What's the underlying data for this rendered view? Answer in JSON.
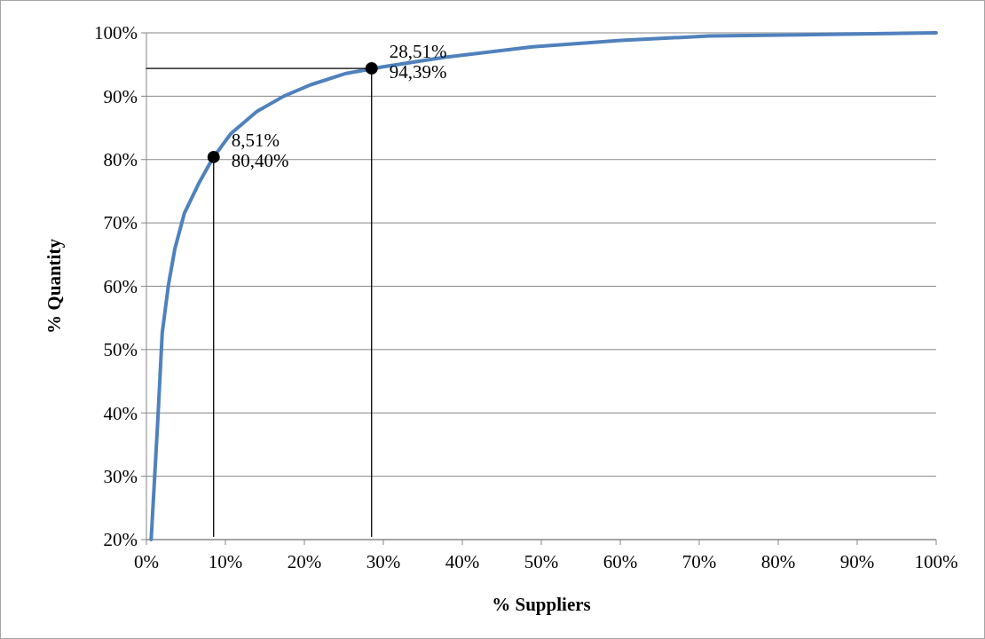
{
  "chart_data": {
    "type": "line",
    "xlabel": "% Suppliers",
    "ylabel": "% Quantity",
    "xlim": [
      0,
      100
    ],
    "ylim": [
      20,
      100
    ],
    "xticks": [
      {
        "value": 0,
        "label": "0%"
      },
      {
        "value": 10,
        "label": "10%"
      },
      {
        "value": 20,
        "label": "20%"
      },
      {
        "value": 30,
        "label": "30%"
      },
      {
        "value": 40,
        "label": "40%"
      },
      {
        "value": 50,
        "label": "50%"
      },
      {
        "value": 60,
        "label": "60%"
      },
      {
        "value": 70,
        "label": "70%"
      },
      {
        "value": 80,
        "label": "80%"
      },
      {
        "value": 90,
        "label": "90%"
      },
      {
        "value": 100,
        "label": "100%"
      }
    ],
    "yticks": [
      {
        "value": 20,
        "label": "20%"
      },
      {
        "value": 30,
        "label": "30%"
      },
      {
        "value": 40,
        "label": "40%"
      },
      {
        "value": 50,
        "label": "50%"
      },
      {
        "value": 60,
        "label": "60%"
      },
      {
        "value": 70,
        "label": "70%"
      },
      {
        "value": 80,
        "label": "80%"
      },
      {
        "value": 90,
        "label": "90%"
      },
      {
        "value": 100,
        "label": "100%"
      }
    ],
    "grid": "y",
    "marker": "none",
    "line_style": "solid",
    "series": [
      {
        "color": "#4f81bd",
        "x": [
          0.6,
          1.4,
          2.0,
          2.8,
          3.6,
          4.8,
          6.7,
          8.4,
          10.7,
          14,
          17.4,
          20.8,
          25.3,
          29.8,
          37.6,
          48.9,
          60.1,
          71.3,
          82.6,
          100
        ],
        "values": [
          20,
          37.9,
          52.6,
          60.3,
          65.9,
          71.5,
          76.4,
          80.2,
          84.1,
          87.6,
          90,
          91.8,
          93.6,
          94.6,
          96.1,
          97.8,
          98.8,
          99.5,
          99.7,
          100
        ]
      },
      {
        "color": "#000000",
        "x": [
          8.51,
          8.51
        ],
        "values": [
          20.5,
          80.4
        ]
      },
      {
        "color": "#000000",
        "x": [
          28.51,
          28.51
        ],
        "values": [
          20.5,
          94.39
        ]
      },
      {
        "color": "#000000",
        "x": [
          0,
          28.51
        ],
        "values": [
          94.39,
          94.39
        ]
      },
      {
        "type": "scatter",
        "marker": "circle",
        "color": "#000000",
        "x": [
          8.51,
          28.51
        ],
        "values": [
          80.4,
          94.39
        ]
      }
    ],
    "annotations": [
      {
        "text": "8,51%\n80,40%",
        "x": 8.51,
        "y": 80.4
      },
      {
        "text": "28,51%\n94,39%",
        "x": 28.51,
        "y": 94.39
      }
    ]
  }
}
